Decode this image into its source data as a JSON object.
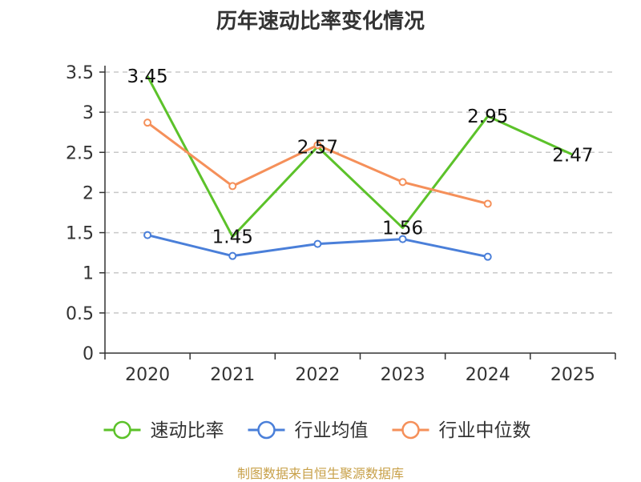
{
  "chart_data": {
    "type": "line",
    "title": "历年速动比率变化情况",
    "categories": [
      "2020",
      "2021",
      "2022",
      "2023",
      "2024",
      "2025"
    ],
    "ylim": [
      0,
      3.5
    ],
    "yticks": [
      "0",
      "0.5",
      "1",
      "1.5",
      "2",
      "2.5",
      "3",
      "3.5"
    ],
    "grid": true,
    "legend_position": "bottom-center",
    "series": [
      {
        "name": "速动比率",
        "color": "#5cc22a",
        "values": [
          3.45,
          1.45,
          2.57,
          1.56,
          2.95,
          2.47
        ],
        "labels": [
          "3.45",
          "1.45",
          "2.57",
          "1.56",
          "2.95",
          "2.47"
        ],
        "show_labels": true,
        "show_markers": false
      },
      {
        "name": "行业均值",
        "color": "#4a7fd9",
        "values": [
          1.47,
          1.21,
          1.36,
          1.42,
          1.2,
          null
        ],
        "show_labels": false,
        "show_markers": true
      },
      {
        "name": "行业中位数",
        "color": "#f5905a",
        "values": [
          2.87,
          2.08,
          2.59,
          2.13,
          1.86,
          null
        ],
        "show_labels": false,
        "show_markers": true
      }
    ],
    "source": "制图数据来自恒生聚源数据库"
  }
}
